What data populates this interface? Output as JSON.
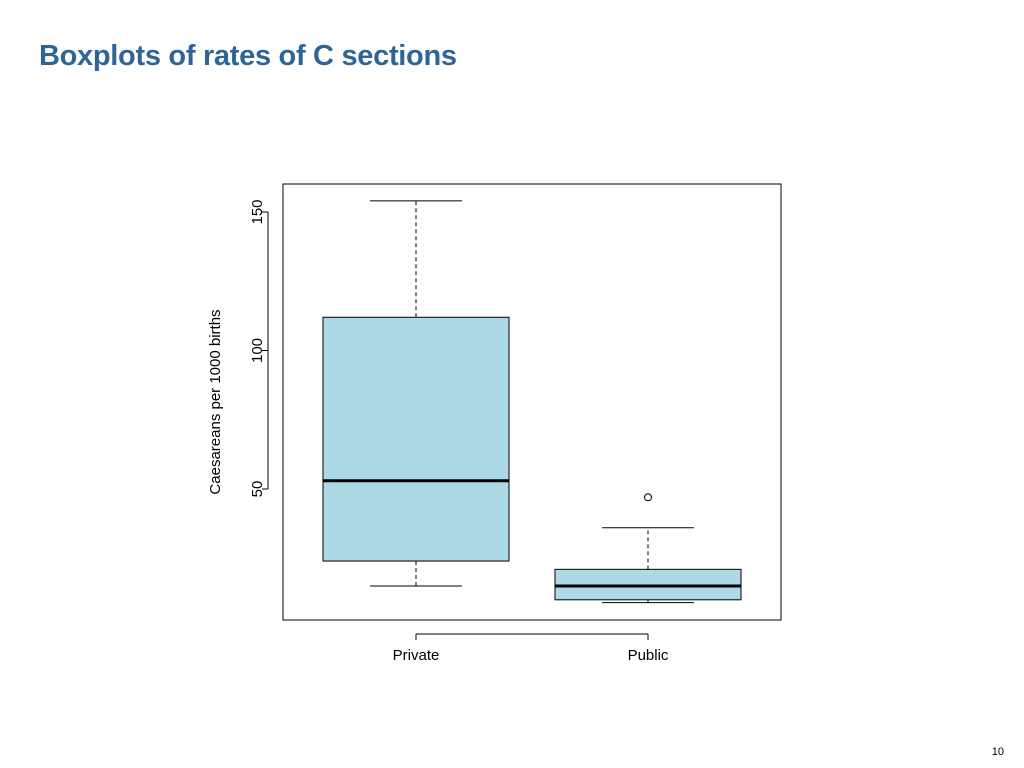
{
  "slide": {
    "title": "Boxplots of rates of C sections",
    "page_number": "10"
  },
  "colors": {
    "title": "#2f6596",
    "box_fill": "#add8e6",
    "stroke": "#000000"
  },
  "chart_data": {
    "type": "boxplot",
    "title": "",
    "xlabel": "",
    "ylabel": "Caesareans per 1000 births",
    "categories": [
      "Private",
      "Public"
    ],
    "ylim": [
      0,
      160
    ],
    "yticks": [
      50,
      100,
      150
    ],
    "grid": false,
    "boxes": [
      {
        "name": "Private",
        "whisker_low": 15,
        "q1": 24,
        "median": 53,
        "q3": 112,
        "whisker_high": 154,
        "outliers": []
      },
      {
        "name": "Public",
        "whisker_low": 9,
        "q1": 10,
        "median": 15,
        "q3": 21,
        "whisker_high": 36,
        "outliers": [
          47
        ]
      }
    ]
  }
}
